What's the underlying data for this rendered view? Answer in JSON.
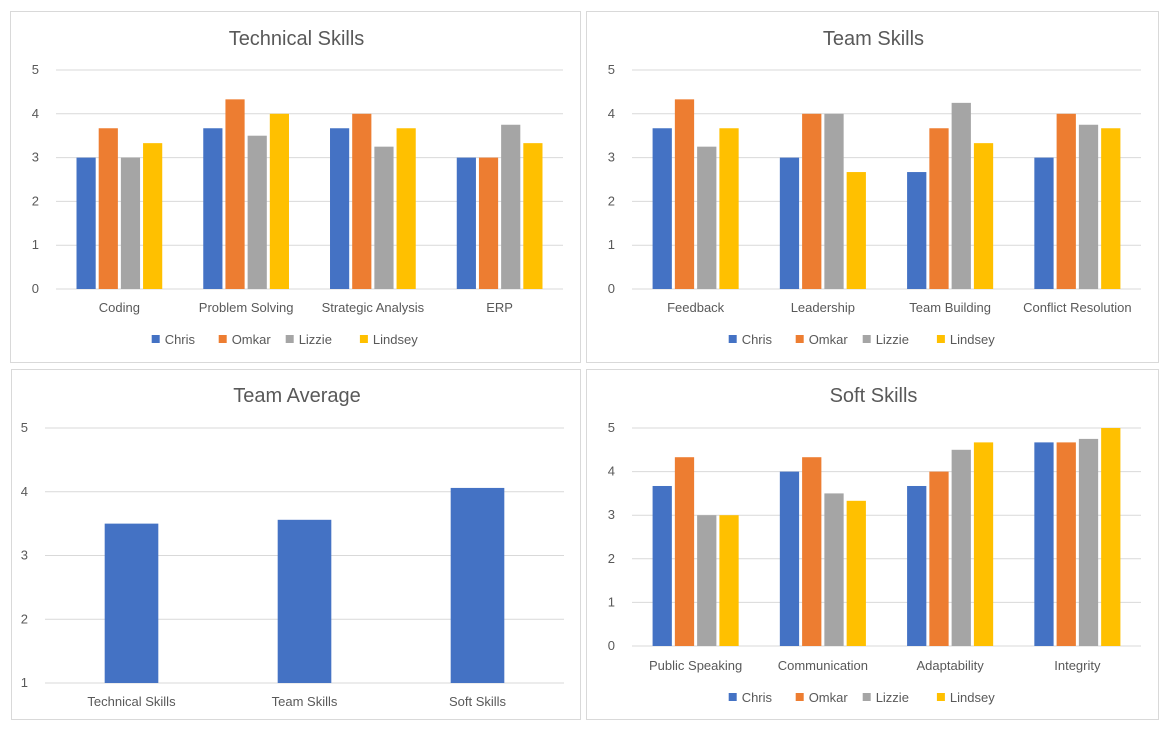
{
  "colors": {
    "Chris": "#4472C4",
    "Omkar": "#ED7D31",
    "Lizzie": "#A5A5A5",
    "Lindsey": "#FFC000",
    "grid": "#d9d9d9",
    "text": "#595959"
  },
  "chart_data": [
    {
      "type": "bar",
      "title": "Technical Skills",
      "categories": [
        "Coding",
        "Problem Solving",
        "Strategic Analysis",
        "ERP"
      ],
      "series": [
        {
          "name": "Chris",
          "values": [
            3.0,
            3.67,
            3.67,
            3.0
          ]
        },
        {
          "name": "Omkar",
          "values": [
            3.67,
            4.33,
            4.0,
            3.0
          ]
        },
        {
          "name": "Lizzie",
          "values": [
            3.0,
            3.5,
            3.25,
            3.75
          ]
        },
        {
          "name": "Lindsey",
          "values": [
            3.33,
            4.0,
            3.67,
            3.33
          ]
        }
      ],
      "yticks": [
        0,
        1,
        2,
        3,
        4,
        5
      ],
      "ylim": [
        0,
        5
      ],
      "grid": true,
      "legend": "bottom"
    },
    {
      "type": "bar",
      "title": "Team Skills",
      "categories": [
        "Feedback",
        "Leadership",
        "Team Building",
        "Conflict Resolution"
      ],
      "series": [
        {
          "name": "Chris",
          "values": [
            3.67,
            3.0,
            2.67,
            3.0
          ]
        },
        {
          "name": "Omkar",
          "values": [
            4.33,
            4.0,
            3.67,
            4.0
          ]
        },
        {
          "name": "Lizzie",
          "values": [
            3.25,
            4.0,
            4.25,
            3.75
          ]
        },
        {
          "name": "Lindsey",
          "values": [
            3.67,
            2.67,
            3.33,
            3.67
          ]
        }
      ],
      "yticks": [
        0,
        1,
        2,
        3,
        4,
        5
      ],
      "ylim": [
        0,
        5
      ],
      "grid": true,
      "legend": "bottom"
    },
    {
      "type": "bar",
      "title": "Team Average",
      "categories": [
        "Technical Skills",
        "Team Skills",
        "Soft Skills"
      ],
      "series": [
        {
          "values": [
            3.5,
            3.56,
            4.06
          ]
        }
      ],
      "yticks": [
        1,
        2,
        3,
        4,
        5
      ],
      "ylim": [
        1,
        5
      ],
      "grid": true,
      "legend": "none"
    },
    {
      "type": "bar",
      "title": "Soft Skills",
      "categories": [
        "Public Speaking",
        "Communication",
        "Adaptability",
        "Integrity"
      ],
      "series": [
        {
          "name": "Chris",
          "values": [
            3.67,
            4.0,
            3.67,
            4.67
          ]
        },
        {
          "name": "Omkar",
          "values": [
            4.33,
            4.33,
            4.0,
            4.67
          ]
        },
        {
          "name": "Lizzie",
          "values": [
            3.0,
            3.5,
            4.5,
            4.75
          ]
        },
        {
          "name": "Lindsey",
          "values": [
            3.0,
            3.33,
            4.67,
            5.0
          ]
        }
      ],
      "yticks": [
        0,
        1,
        2,
        3,
        4,
        5
      ],
      "ylim": [
        0,
        5
      ],
      "grid": true,
      "legend": "bottom"
    }
  ]
}
